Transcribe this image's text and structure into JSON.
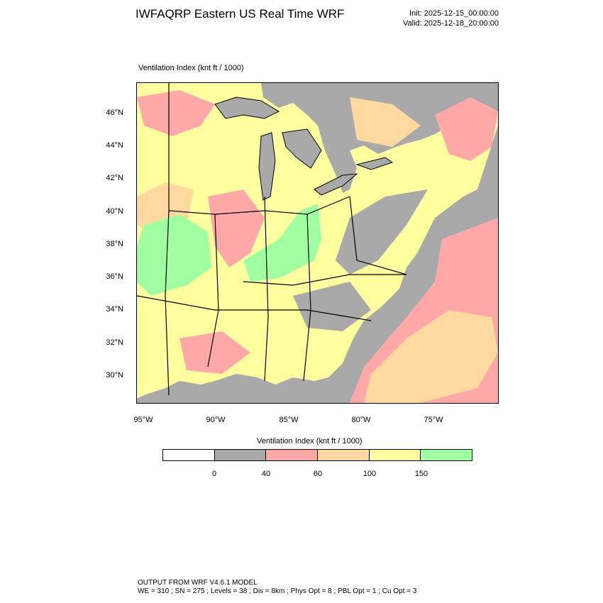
{
  "header": {
    "title": "IWFAQRP Eastern US Real Time WRF",
    "init": "Init: 2025-12-15_00:00:00",
    "valid": "Valid: 2025-12-18_20:00:00"
  },
  "map": {
    "field_label": "Ventilation Index   (knt ft / 1000)",
    "lat_labels": [
      "46°N",
      "44°N",
      "42°N",
      "40°N",
      "38°N",
      "36°N",
      "34°N",
      "32°N",
      "30°N"
    ],
    "lon_labels": [
      "95°W",
      "90°W",
      "85°W",
      "80°W",
      "75°W"
    ],
    "colors": {
      "class_0_40": "#a9a9a9",
      "class_40_60": "#ffa8a8",
      "class_60_100": "#ffd9a0",
      "class_100_150": "#ffff9f",
      "class_150_plus": "#a0ffa0",
      "water": "#a9a9a9"
    }
  },
  "colorbar": {
    "title": "Ventilation Index  (knt ft / 1000)",
    "colors": [
      "#ffffff",
      "#a9a9a9",
      "#ffa8a8",
      "#ffd9a0",
      "#ffff9f",
      "#a0ffa0"
    ],
    "labels": [
      "0",
      "40",
      "60",
      "100",
      "150"
    ]
  },
  "footer": {
    "line1": "OUTPUT FROM WRF V4.6.1 MODEL",
    "line2": "WE = 310 ; SN = 275 ; Levels = 38 ; Dis = 8km ; Phys Opt = 8 ; PBL Opt = 1 ; Cu Opt = 3"
  }
}
